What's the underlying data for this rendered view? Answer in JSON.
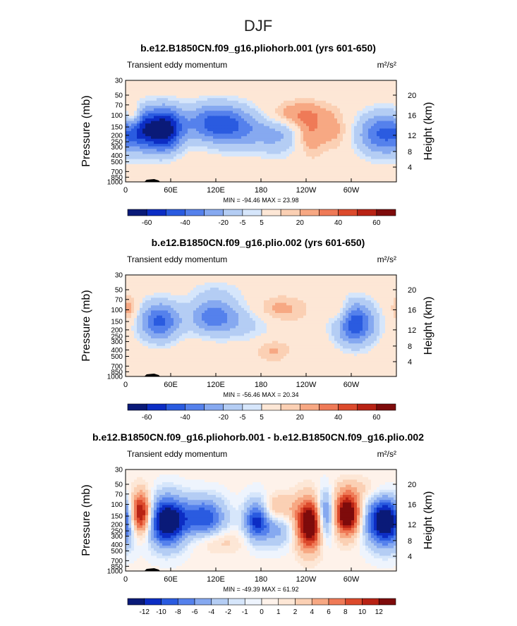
{
  "page_title": "DJF",
  "chart_data": [
    {
      "type": "heatmap",
      "title": "b.e12.B1850CN.f09_g16.pliohorb.001 (yrs 601-650)",
      "variable_label": "Transient eddy momentum",
      "units": "m²/s²",
      "ylabel": "Pressure (mb)",
      "ylabel_right": "Height (km)",
      "x_ticks": [
        "0",
        "60E",
        "120E",
        "180",
        "120W",
        "60W"
      ],
      "y_ticks": [
        "30",
        "50",
        "70",
        "100",
        "150",
        "200",
        "250",
        "300",
        "400",
        "500",
        "700",
        "850",
        "1000"
      ],
      "y_ticks_right": [
        "20",
        "16",
        "12",
        "8",
        "4"
      ],
      "min_max_text": "MIN = -94.46   MAX = 23.98",
      "colorbar_labels": [
        "-60",
        "-40",
        "-20",
        "-5",
        "5",
        "20",
        "40",
        "60"
      ],
      "blobs": [
        {
          "lon": 50,
          "p": 165,
          "v": -70,
          "dlon": 18,
          "dp": 0.55
        },
        {
          "lon": 20,
          "p": 150,
          "v": -25,
          "dlon": 12,
          "dp": 0.5
        },
        {
          "lon": 115,
          "p": 130,
          "v": -40,
          "dlon": 28,
          "dp": 0.5
        },
        {
          "lon": 155,
          "p": 160,
          "v": -25,
          "dlon": 28,
          "dp": 0.55
        },
        {
          "lon": 205,
          "p": 195,
          "v": -20,
          "dlon": 22,
          "dp": 0.55
        },
        {
          "lon": 345,
          "p": 190,
          "v": -45,
          "dlon": 28,
          "dp": 0.55
        },
        {
          "lon": 10,
          "p": 105,
          "v": 25,
          "dlon": 8,
          "dp": 0.3
        },
        {
          "lon": 225,
          "p": 100,
          "v": 22,
          "dlon": 30,
          "dp": 0.3
        },
        {
          "lon": 245,
          "p": 200,
          "v": 18,
          "dlon": 12,
          "dp": 0.45
        },
        {
          "lon": 280,
          "p": 180,
          "v": 12,
          "dlon": 16,
          "dp": 0.4
        }
      ]
    },
    {
      "type": "heatmap",
      "title": "b.e12.B1850CN.f09_g16.plio.002 (yrs 601-650)",
      "variable_label": "Transient eddy momentum",
      "units": "m²/s²",
      "ylabel": "Pressure (mb)",
      "ylabel_right": "Height (km)",
      "x_ticks": [
        "0",
        "60E",
        "120E",
        "180",
        "120W",
        "60W"
      ],
      "y_ticks": [
        "30",
        "50",
        "70",
        "100",
        "150",
        "200",
        "250",
        "300",
        "400",
        "500",
        "700",
        "850",
        "1000"
      ],
      "y_ticks_right": [
        "20",
        "16",
        "12",
        "8",
        "4"
      ],
      "min_max_text": "MIN = -56.46   MAX = 20.34",
      "colorbar_labels": [
        "-60",
        "-40",
        "-20",
        "-5",
        "5",
        "20",
        "40",
        "60"
      ],
      "blobs": [
        {
          "lon": 45,
          "p": 150,
          "v": -45,
          "dlon": 20,
          "dp": 0.5
        },
        {
          "lon": 115,
          "p": 125,
          "v": -35,
          "dlon": 22,
          "dp": 0.45
        },
        {
          "lon": 160,
          "p": 150,
          "v": -15,
          "dlon": 30,
          "dp": 0.5
        },
        {
          "lon": 305,
          "p": 160,
          "v": -50,
          "dlon": 20,
          "dp": 0.55
        },
        {
          "lon": 5,
          "p": 100,
          "v": 15,
          "dlon": 8,
          "dp": 0.3
        },
        {
          "lon": 200,
          "p": 100,
          "v": 14,
          "dlon": 25,
          "dp": 0.3
        },
        {
          "lon": 285,
          "p": 110,
          "v": 15,
          "dlon": 10,
          "dp": 0.35
        },
        {
          "lon": 195,
          "p": 400,
          "v": 10,
          "dlon": 15,
          "dp": 0.25
        },
        {
          "lon": 120,
          "p": 50,
          "v": -8,
          "dlon": 30,
          "dp": 0.3
        }
      ]
    },
    {
      "type": "heatmap",
      "title": "b.e12.B1850CN.f09_g16.pliohorb.001 - b.e12.B1850CN.f09_g16.plio.002",
      "variable_label": "Transient eddy momentum",
      "units": "m²/s²",
      "ylabel": "Pressure (mb)",
      "ylabel_right": "Height (km)",
      "x_ticks": [
        "0",
        "60E",
        "120E",
        "180",
        "120W",
        "60W"
      ],
      "y_ticks": [
        "30",
        "50",
        "70",
        "100",
        "150",
        "200",
        "250",
        "300",
        "400",
        "500",
        "700",
        "850",
        "1000"
      ],
      "y_ticks_right": [
        "20",
        "16",
        "12",
        "8",
        "4"
      ],
      "min_max_text": "MIN = -49.39   MAX = 61.92",
      "colorbar_labels": [
        "-12",
        "-10",
        "-8",
        "-6",
        "-4",
        "-2",
        "-1",
        "0",
        "1",
        "2",
        "4",
        "6",
        "8",
        "10",
        "12"
      ],
      "blobs": [
        {
          "lon": 20,
          "p": 140,
          "v": 16,
          "dlon": 10,
          "dp": 0.5
        },
        {
          "lon": 55,
          "p": 180,
          "v": -16,
          "dlon": 18,
          "dp": 0.6
        },
        {
          "lon": 105,
          "p": 160,
          "v": -10,
          "dlon": 20,
          "dp": 0.5
        },
        {
          "lon": 175,
          "p": 170,
          "v": -12,
          "dlon": 12,
          "dp": 0.5
        },
        {
          "lon": 200,
          "p": 120,
          "v": 5,
          "dlon": 20,
          "dp": 0.35
        },
        {
          "lon": 205,
          "p": 230,
          "v": -5,
          "dlon": 15,
          "dp": 0.45
        },
        {
          "lon": 245,
          "p": 200,
          "v": 16,
          "dlon": 13,
          "dp": 0.6
        },
        {
          "lon": 265,
          "p": 150,
          "v": -10,
          "dlon": 8,
          "dp": 0.6
        },
        {
          "lon": 295,
          "p": 140,
          "v": 16,
          "dlon": 12,
          "dp": 0.5
        },
        {
          "lon": 345,
          "p": 180,
          "v": -16,
          "dlon": 18,
          "dp": 0.6
        },
        {
          "lon": 120,
          "p": 350,
          "v": 3,
          "dlon": 25,
          "dp": 0.3
        },
        {
          "lon": 320,
          "p": 60,
          "v": 2,
          "dlon": 30,
          "dp": 0.3
        }
      ]
    }
  ],
  "colors": {
    "palette": [
      "#0a1a78",
      "#0c2dc4",
      "#2a5be0",
      "#5581ec",
      "#86a9f0",
      "#b4cdf4",
      "#d6e6fb",
      "#fde7d6",
      "#fbd0b4",
      "#f7a883",
      "#ef7a57",
      "#dc4a2c",
      "#b82214",
      "#7e0b0b"
    ],
    "palette_diff": [
      "#0a1a78",
      "#0c2dc4",
      "#2a5be0",
      "#5581ec",
      "#86a9f0",
      "#b4cdf4",
      "#d6e6fb",
      "#eef4fd",
      "#fef2ea",
      "#fde7d6",
      "#fbd0b4",
      "#f7a883",
      "#ef7a57",
      "#dc4a2c",
      "#b82214",
      "#7e0b0b"
    ]
  }
}
